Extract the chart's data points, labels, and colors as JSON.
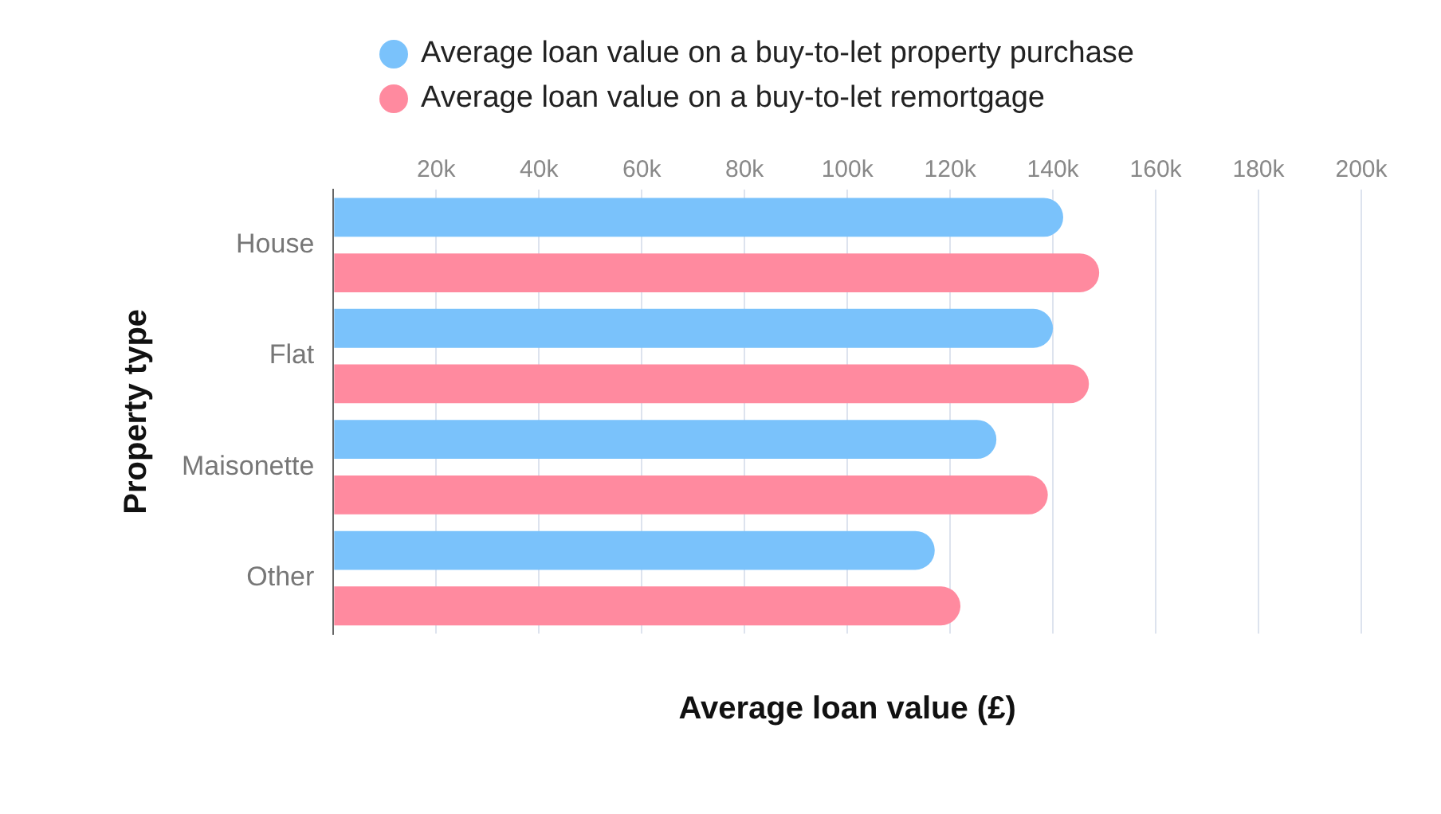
{
  "chart_data": {
    "type": "bar",
    "orientation": "horizontal",
    "categories": [
      "House",
      "Flat",
      "Maisonette",
      "Other"
    ],
    "series": [
      {
        "name": "Average loan value on a buy-to-let property purchase",
        "color": "#7ac2fb",
        "values": [
          142000,
          140000,
          129000,
          117000
        ]
      },
      {
        "name": "Average loan value on a buy-to-let remortgage",
        "color": "#ff8a9f",
        "values": [
          149000,
          147000,
          139000,
          122000
        ]
      }
    ],
    "xlabel": "Average loan value (£)",
    "ylabel": "Property type",
    "xlim": [
      0,
      200000
    ],
    "xticks": [
      {
        "value": 0,
        "label": null
      },
      {
        "value": 20000,
        "label": "20k"
      },
      {
        "value": 40000,
        "label": "40k"
      },
      {
        "value": 60000,
        "label": "60k"
      },
      {
        "value": 80000,
        "label": "80k"
      },
      {
        "value": 100000,
        "label": "100k"
      },
      {
        "value": 120000,
        "label": "120k"
      },
      {
        "value": 140000,
        "label": "140k"
      },
      {
        "value": 160000,
        "label": "160k"
      },
      {
        "value": 180000,
        "label": "180k"
      },
      {
        "value": 200000,
        "label": "200k"
      }
    ],
    "grid": "x",
    "legend": "top"
  }
}
